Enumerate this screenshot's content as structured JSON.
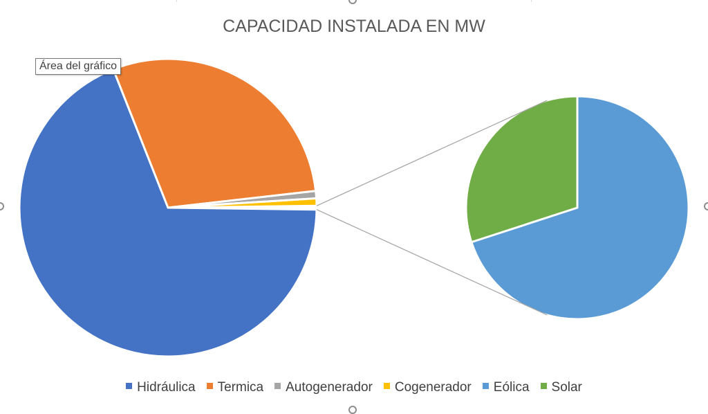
{
  "chart_data": {
    "type": "pie",
    "subtype": "pie-of-pie",
    "title": "CAPACIDAD INSTALADA EN MW",
    "categories": [
      "Hidráulica",
      "Termica",
      "Autogenerador",
      "Cogenerador",
      "Eólica",
      "Solar"
    ],
    "values": [
      68.8,
      29.2,
      0.8,
      0.8,
      0.28,
      0.12
    ],
    "split": {
      "main": [
        "Hidráulica",
        "Termica",
        "Autogenerador",
        "Cogenerador"
      ],
      "secondary": [
        "Eólica",
        "Solar"
      ]
    },
    "colors": [
      "#4472c4",
      "#ed7d31",
      "#a5a5a5",
      "#ffc000",
      "#5b9bd5",
      "#70ad47"
    ],
    "legend_position": "bottom"
  },
  "tooltip": {
    "label": "Área del gráfico"
  }
}
